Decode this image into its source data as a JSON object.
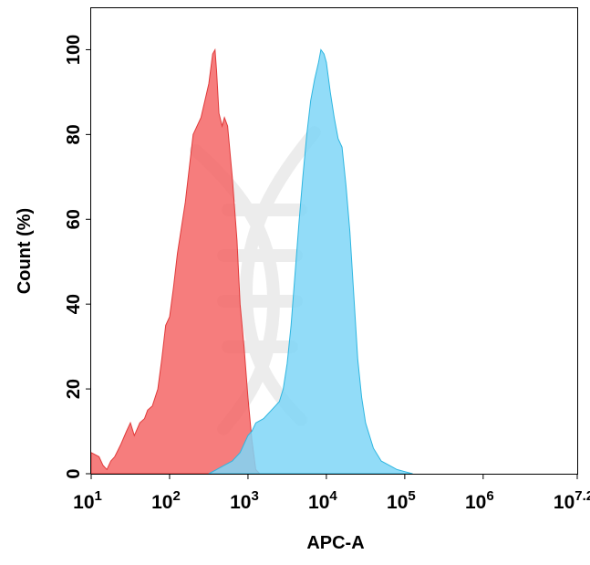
{
  "chart_data": {
    "type": "area",
    "title": "",
    "xlabel": "APC-A",
    "ylabel": "Count  (%)",
    "x_scale": "log10",
    "xlim": [
      1,
      7.2
    ],
    "ylim": [
      0,
      110
    ],
    "grid": false,
    "x_ticks": [
      {
        "value": 1,
        "base": "10",
        "exp": "1"
      },
      {
        "value": 2,
        "base": "10",
        "exp": "2"
      },
      {
        "value": 3,
        "base": "10",
        "exp": "3"
      },
      {
        "value": 4,
        "base": "10",
        "exp": "4"
      },
      {
        "value": 5,
        "base": "10",
        "exp": "5"
      },
      {
        "value": 6,
        "base": "10",
        "exp": "6"
      },
      {
        "value": 7.2,
        "base": "10",
        "exp": "7.2"
      }
    ],
    "y_ticks": [
      "0",
      "20",
      "40",
      "60",
      "80",
      "100"
    ],
    "series": [
      {
        "color": "#f46666",
        "edge": "#e03a3a",
        "points": [
          [
            1.0,
            5
          ],
          [
            1.1,
            4
          ],
          [
            1.15,
            2
          ],
          [
            1.2,
            1
          ],
          [
            1.25,
            3
          ],
          [
            1.3,
            4
          ],
          [
            1.38,
            7
          ],
          [
            1.45,
            10
          ],
          [
            1.5,
            12
          ],
          [
            1.55,
            9
          ],
          [
            1.62,
            12
          ],
          [
            1.68,
            13
          ],
          [
            1.72,
            15
          ],
          [
            1.78,
            16
          ],
          [
            1.85,
            20
          ],
          [
            1.9,
            27
          ],
          [
            1.95,
            35
          ],
          [
            2.0,
            37
          ],
          [
            2.05,
            44
          ],
          [
            2.1,
            52
          ],
          [
            2.15,
            58
          ],
          [
            2.2,
            64
          ],
          [
            2.25,
            72
          ],
          [
            2.3,
            80
          ],
          [
            2.35,
            82
          ],
          [
            2.4,
            84
          ],
          [
            2.45,
            88
          ],
          [
            2.5,
            92
          ],
          [
            2.55,
            99
          ],
          [
            2.58,
            100
          ],
          [
            2.6,
            95
          ],
          [
            2.63,
            85
          ],
          [
            2.67,
            82
          ],
          [
            2.7,
            84
          ],
          [
            2.74,
            82
          ],
          [
            2.8,
            70
          ],
          [
            2.86,
            55
          ],
          [
            2.9,
            40
          ],
          [
            2.95,
            30
          ],
          [
            3.0,
            18
          ],
          [
            3.05,
            8
          ],
          [
            3.1,
            1
          ],
          [
            3.15,
            0
          ]
        ]
      },
      {
        "color": "#7fd6f7",
        "edge": "#2eb6e0",
        "points": [
          [
            2.5,
            0
          ],
          [
            2.6,
            1
          ],
          [
            2.7,
            2
          ],
          [
            2.8,
            3
          ],
          [
            2.9,
            5
          ],
          [
            3.0,
            9
          ],
          [
            3.05,
            10
          ],
          [
            3.1,
            12
          ],
          [
            3.2,
            13
          ],
          [
            3.3,
            15
          ],
          [
            3.35,
            16
          ],
          [
            3.4,
            17
          ],
          [
            3.45,
            20
          ],
          [
            3.5,
            26
          ],
          [
            3.55,
            35
          ],
          [
            3.6,
            47
          ],
          [
            3.65,
            59
          ],
          [
            3.7,
            70
          ],
          [
            3.75,
            80
          ],
          [
            3.8,
            88
          ],
          [
            3.85,
            93
          ],
          [
            3.9,
            97
          ],
          [
            3.93,
            100
          ],
          [
            3.97,
            99
          ],
          [
            4.0,
            97
          ],
          [
            4.05,
            90
          ],
          [
            4.1,
            84
          ],
          [
            4.15,
            79
          ],
          [
            4.2,
            77
          ],
          [
            4.25,
            68
          ],
          [
            4.3,
            57
          ],
          [
            4.35,
            42
          ],
          [
            4.4,
            27
          ],
          [
            4.45,
            18
          ],
          [
            4.5,
            12
          ],
          [
            4.6,
            6
          ],
          [
            4.7,
            3
          ],
          [
            4.8,
            2
          ],
          [
            4.9,
            1
          ],
          [
            5.0,
            0.5
          ],
          [
            5.1,
            0
          ]
        ]
      }
    ]
  }
}
